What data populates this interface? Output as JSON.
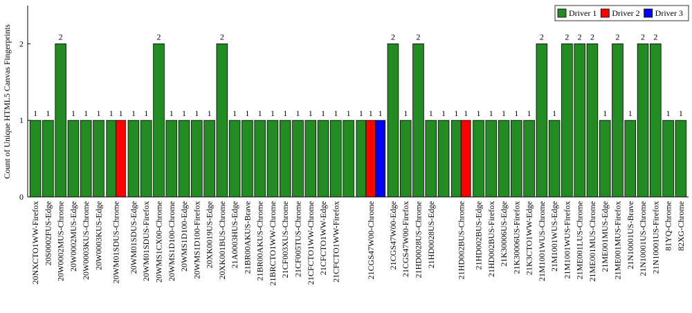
{
  "chart_data": {
    "type": "bar",
    "y_label": "Count of Unique HTML5 Canvas Fingerprints",
    "categories": [
      "20NXCTO1WW-Firefox",
      "20S0002FUS-Edge",
      "20W0002MUS-Chrome",
      "20W0002MUS-Edge",
      "20W0003KUS-Chrome",
      "20W0003KUS-Edge",
      "20WM01SDUS-Chrome",
      "20WM01SDUS-Edge",
      "20WM01SDUS-Firefox",
      "20WMS1CX00-Chrome",
      "20WMS1D100-Chrome",
      "20WMS1D100-Edge",
      "20WMS1D100-Firefox",
      "20XK0019US-Edge",
      "20XK001BUS-Chrome",
      "21A0003HUS-Edge",
      "21BR00AKUS-Brave",
      "21BR00AKUS-Chrome",
      "21BRCTO1WW-Chrome",
      "21CF003XUS-Chrome",
      "21CF005TUS-Chrome",
      "21CFCTO1WW-Chrome",
      "21CFCTO1WW-Edge",
      "21CFCTO1WW-Firefox",
      null,
      "21CGS47W00-Chrome",
      "21CGS47W00-Edge",
      "21CGS47W00-Firefox",
      "21HD0028US-Chrome",
      "21HD0028US-Edge",
      null,
      "21HD002BUS-Chrome",
      "21HD002BUS-Edge",
      "21HD002BUS-Firefox",
      "21K30006US-Edge",
      "21K30006US-Firefox",
      "21K3CTO1WW-Edge",
      "21M1001WUS-Chrome",
      "21M1001WUS-Edge",
      "21M1001WUS-Firefox",
      "21ME001LUS-Chrome",
      "21ME001MUS-Chrome",
      "21ME001MUS-Edge",
      "21ME001MUS-Firefox",
      "21N10001US-Brave",
      "21N10001US-Chrome",
      "21N10001US-Firefox",
      "81YQ-Chrome",
      "82XG-Chrome"
    ],
    "series": [
      {
        "name": "Driver 1",
        "color": "#228b22",
        "values": [
          1,
          1,
          2,
          1,
          1,
          1,
          1,
          1,
          1,
          2,
          1,
          1,
          1,
          1,
          2,
          1,
          1,
          1,
          1,
          1,
          1,
          1,
          1,
          1,
          1,
          1,
          2,
          1,
          2,
          1,
          1,
          1,
          1,
          1,
          1,
          1,
          1,
          2,
          1,
          2,
          2,
          2,
          1,
          2,
          1,
          2,
          2,
          1,
          1
        ]
      },
      {
        "name": "Driver 2",
        "color": "#ff0000",
        "values": [
          null,
          null,
          null,
          null,
          null,
          null,
          1,
          null,
          null,
          null,
          null,
          null,
          null,
          null,
          null,
          null,
          null,
          null,
          null,
          null,
          null,
          null,
          null,
          null,
          null,
          1,
          null,
          null,
          null,
          null,
          null,
          1,
          null,
          null,
          null,
          null,
          null,
          null,
          null,
          null,
          null,
          null,
          null,
          null,
          null,
          null,
          null,
          null,
          null
        ]
      },
      {
        "name": "Driver 3",
        "color": "#0000ff",
        "values": [
          null,
          null,
          null,
          null,
          null,
          null,
          null,
          null,
          null,
          null,
          null,
          null,
          null,
          null,
          null,
          null,
          null,
          null,
          null,
          null,
          null,
          null,
          null,
          null,
          null,
          1,
          null,
          null,
          null,
          null,
          null,
          null,
          null,
          null,
          null,
          null,
          null,
          null,
          null,
          null,
          null,
          null,
          null,
          null,
          null,
          null,
          null,
          null,
          null
        ]
      }
    ],
    "ylim": [
      0,
      2.5
    ],
    "yticks": [
      0,
      1,
      2
    ],
    "legend": "top-right"
  }
}
